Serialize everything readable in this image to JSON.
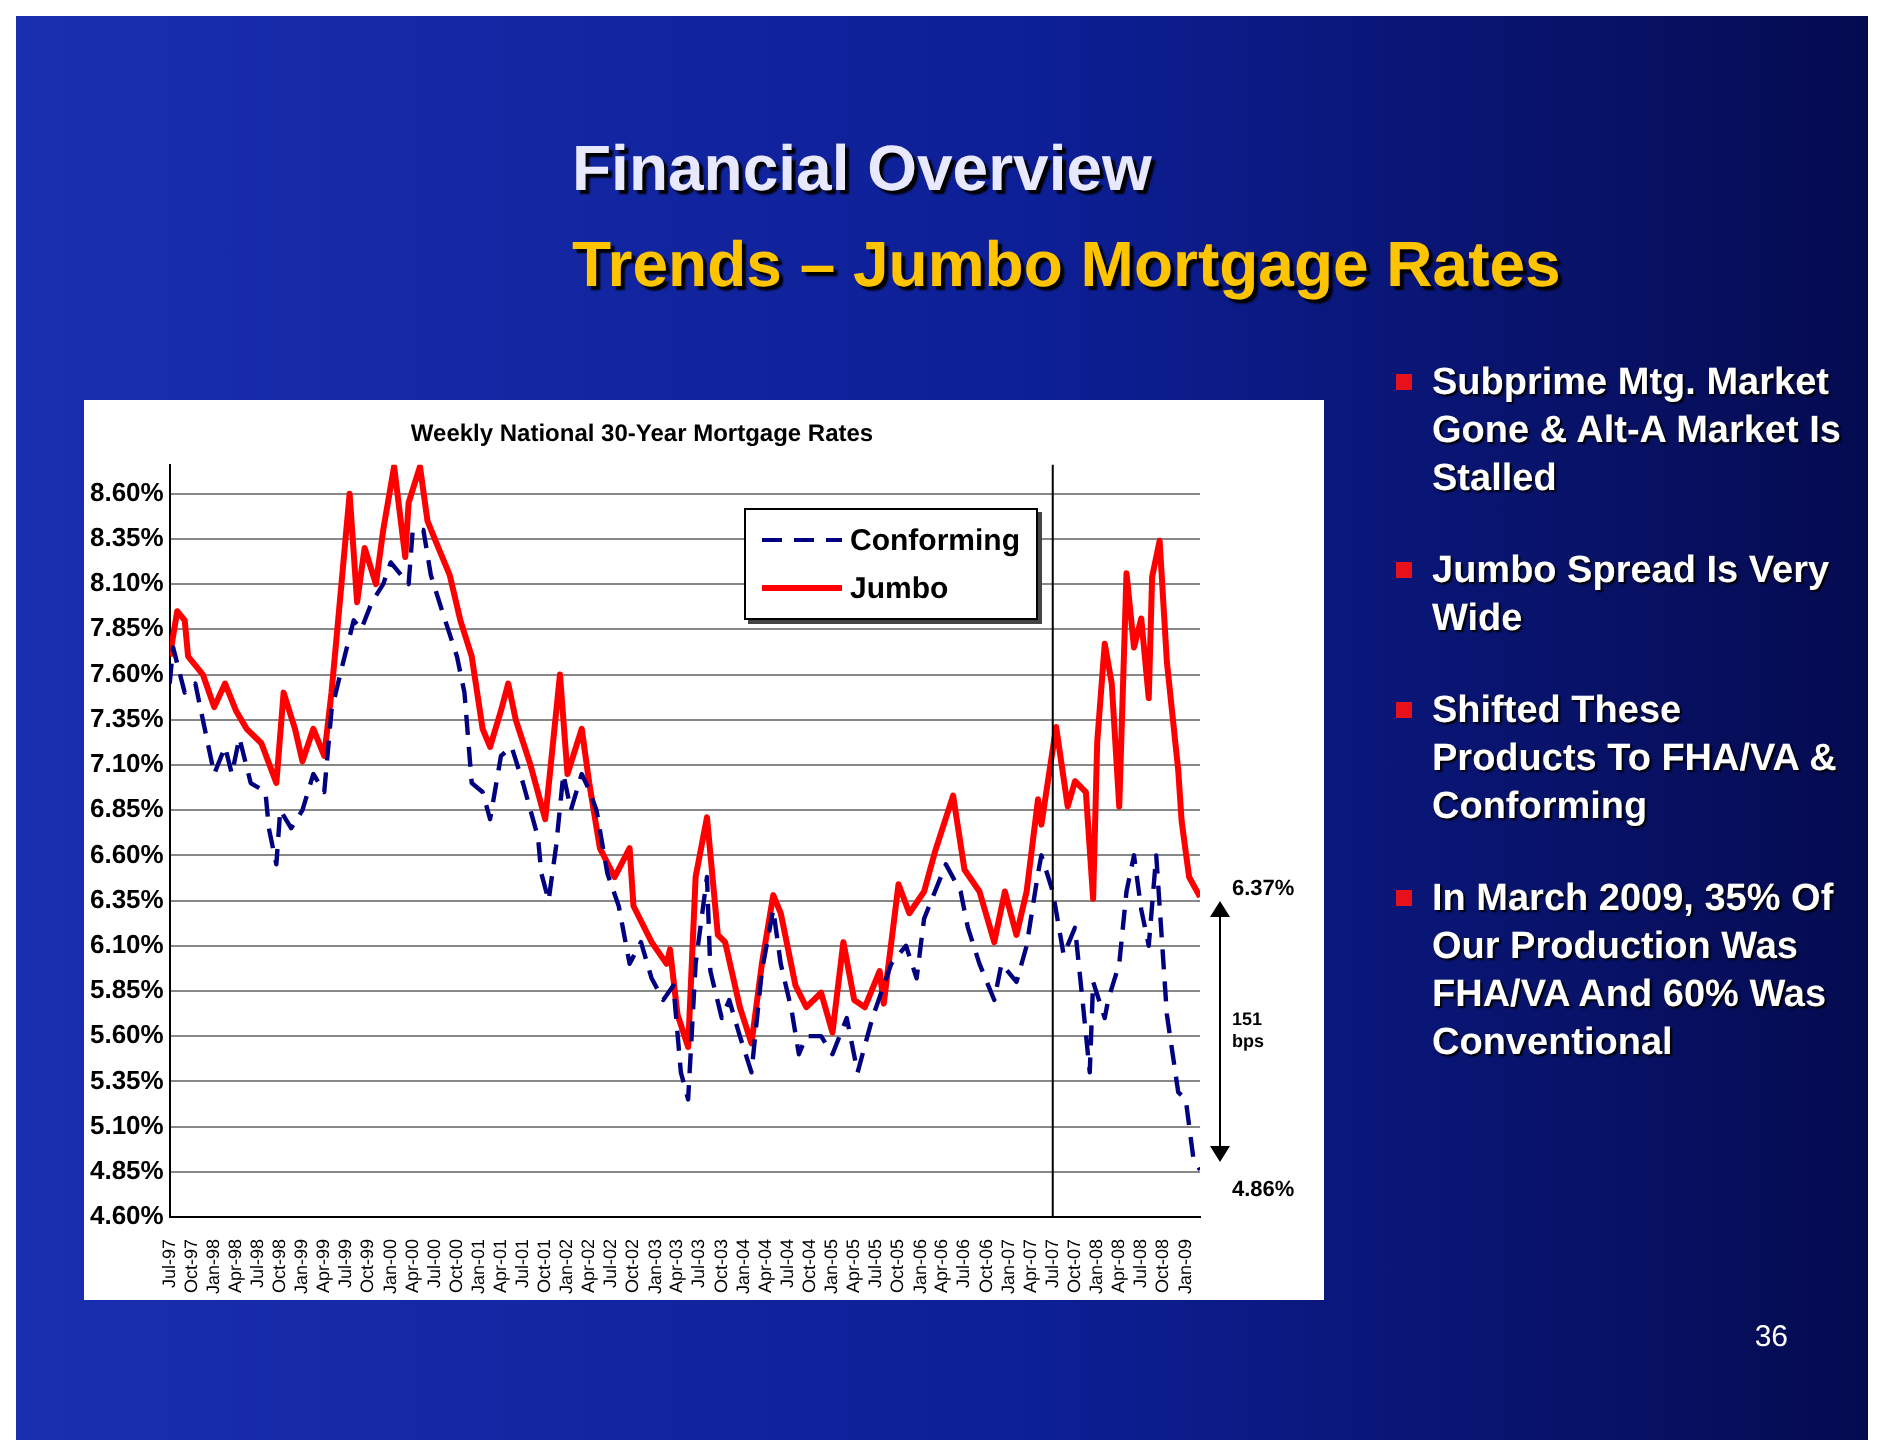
{
  "chart_data": {
    "type": "line",
    "title": "Weekly National 30-Year Mortgage Rates",
    "annotations": [
      "Financial Overview",
      "Trends – Jumbo Mortgage Rates",
      "Subprime Mtg. Market Gone & Alt-A Market Is Stalled",
      "Jumbo Spread Is Very Wide",
      "Shifted These Products To FHA/VA & Conforming",
      "In March 2009, 35% Of Our Production Was FHA/VA And 60% Was Conventional",
      "36",
      "151 bps",
      {
        "text": "6.37%",
        "x": "2009-03-01",
        "y": 6.37
      },
      {
        "text": "4.86%",
        "x": "2009-03-01",
        "y": 4.86
      }
    ],
    "series": [
      {
        "name": "Conforming",
        "color": "#000080",
        "line_style": "dashed",
        "x": [
          "1997-07-01",
          "1997-07-15",
          "1997-09-01",
          "1997-10-15",
          "1997-11-15",
          "1998-01-01",
          "1998-02-15",
          "1998-03-15",
          "1998-04-15",
          "1998-06-01",
          "1998-08-01",
          "1998-08-15",
          "1998-09-15",
          "1998-10-01",
          "1998-11-15",
          "1999-01-01",
          "1999-02-15",
          "1999-04-01",
          "1999-05-01",
          "1999-06-15",
          "1999-08-01",
          "1999-09-01",
          "1999-10-15",
          "1999-12-01",
          "2000-01-01",
          "2000-03-15",
          "2000-04-01",
          "2000-05-15",
          "2000-06-15",
          "2000-08-01",
          "2000-10-01",
          "2000-11-01",
          "2000-12-01",
          "2001-01-15",
          "2001-02-15",
          "2001-04-01",
          "2001-05-15",
          "2001-07-01",
          "2001-09-01",
          "2001-09-15",
          "2001-10-15",
          "2001-11-15",
          "2001-12-15",
          "2002-01-15",
          "2002-03-01",
          "2002-04-01",
          "2002-05-01",
          "2002-06-15",
          "2002-08-01",
          "2002-09-15",
          "2002-11-01",
          "2002-12-15",
          "2003-02-01",
          "2003-03-15",
          "2003-04-15",
          "2003-05-15",
          "2003-06-15",
          "2003-08-01",
          "2003-08-15",
          "2003-10-01",
          "2003-11-01",
          "2003-12-15",
          "2004-02-01",
          "2004-03-15",
          "2004-05-01",
          "2004-06-01",
          "2004-07-15",
          "2004-08-15",
          "2004-09-15",
          "2004-11-15",
          "2005-01-01",
          "2005-03-01",
          "2005-04-15",
          "2005-06-15",
          "2005-08-01",
          "2005-09-01",
          "2005-11-01",
          "2005-12-15",
          "2006-01-15",
          "2006-03-01",
          "2006-04-15",
          "2006-06-15",
          "2006-07-15",
          "2006-09-01",
          "2006-11-01",
          "2006-12-01",
          "2007-02-01",
          "2007-03-15",
          "2007-05-01",
          "2007-05-15",
          "2007-07-01",
          "2007-08-15",
          "2007-10-01",
          "2007-11-01",
          "2007-12-01",
          "2007-12-15",
          "2008-02-01",
          "2008-02-15",
          "2008-04-01",
          "2008-05-01",
          "2008-06-01",
          "2008-07-01",
          "2008-08-01",
          "2008-09-01",
          "2008-10-15",
          "2008-12-01",
          "2009-01-01",
          "2009-02-01",
          "2009-03-01"
        ],
        "values": [
          7.55,
          7.75,
          7.5,
          7.55,
          7.35,
          7.05,
          7.2,
          7.05,
          7.25,
          7.0,
          6.95,
          6.75,
          6.55,
          6.85,
          6.75,
          6.85,
          7.05,
          6.95,
          7.4,
          7.65,
          7.9,
          7.85,
          8.0,
          8.1,
          8.22,
          8.1,
          8.4,
          8.4,
          8.15,
          7.95,
          7.7,
          7.5,
          7.0,
          6.95,
          6.8,
          7.15,
          7.2,
          7.0,
          6.7,
          6.5,
          6.35,
          6.65,
          7.05,
          6.85,
          7.05,
          6.96,
          6.85,
          6.5,
          6.32,
          6.0,
          6.12,
          5.92,
          5.8,
          5.88,
          5.4,
          5.25,
          6.0,
          6.48,
          5.96,
          5.7,
          5.8,
          5.6,
          5.4,
          5.96,
          6.3,
          6.0,
          5.75,
          5.5,
          5.6,
          5.6,
          5.5,
          5.7,
          5.4,
          5.7,
          5.88,
          6.0,
          6.1,
          5.92,
          6.25,
          6.4,
          6.55,
          6.4,
          6.2,
          6.0,
          5.8,
          6.0,
          5.9,
          6.1,
          6.5,
          6.6,
          6.4,
          6.05,
          6.2,
          5.8,
          5.4,
          5.9,
          5.7,
          5.8,
          6.0,
          6.4,
          6.6,
          6.3,
          6.1,
          6.6,
          5.72,
          5.29,
          5.25,
          4.93,
          4.86
        ]
      },
      {
        "name": "Jumbo",
        "color": "#ff0000",
        "line_style": "solid",
        "x": [
          "1997-07-01",
          "1997-08-01",
          "1997-09-01",
          "1997-09-15",
          "1997-11-15",
          "1998-01-01",
          "1998-02-15",
          "1998-04-01",
          "1998-05-15",
          "1998-07-15",
          "1998-09-15",
          "1998-10-15",
          "1998-12-01",
          "1999-01-01",
          "1999-02-15",
          "1999-04-01",
          "1999-05-01",
          "1999-06-01",
          "1999-07-15",
          "1999-08-15",
          "1999-09-15",
          "1999-11-01",
          "1999-12-01",
          "2000-01-15",
          "2000-03-01",
          "2000-03-15",
          "2000-05-01",
          "2000-06-01",
          "2000-07-01",
          "2000-09-01",
          "2000-10-15",
          "2000-12-01",
          "2001-01-15",
          "2001-02-15",
          "2001-04-01",
          "2001-05-01",
          "2001-06-01",
          "2001-08-01",
          "2001-10-01",
          "2001-12-01",
          "2002-01-01",
          "2002-03-01",
          "2002-04-01",
          "2002-05-15",
          "2002-07-15",
          "2002-09-15",
          "2002-10-01",
          "2002-12-15",
          "2003-02-15",
          "2003-03-01",
          "2003-04-01",
          "2003-05-15",
          "2003-06-15",
          "2003-08-01",
          "2003-09-15",
          "2003-10-15",
          "2003-12-15",
          "2004-02-01",
          "2004-03-15",
          "2004-05-01",
          "2004-06-01",
          "2004-08-01",
          "2004-09-15",
          "2004-11-15",
          "2005-01-01",
          "2005-02-15",
          "2005-04-01",
          "2005-05-15",
          "2005-07-15",
          "2005-08-01",
          "2005-10-01",
          "2005-11-15",
          "2006-01-15",
          "2006-03-01",
          "2006-05-15",
          "2006-07-01",
          "2006-09-01",
          "2006-11-01",
          "2006-12-15",
          "2007-02-01",
          "2007-03-15",
          "2007-05-01",
          "2007-05-15",
          "2007-07-15",
          "2007-09-01",
          "2007-10-01",
          "2007-11-15",
          "2007-12-15",
          "2008-01-01",
          "2008-02-01",
          "2008-03-01",
          "2008-04-01",
          "2008-05-01",
          "2008-06-01",
          "2008-07-01",
          "2008-08-01",
          "2008-08-15",
          "2008-09-15",
          "2008-10-15",
          "2008-12-01",
          "2008-12-15",
          "2009-01-15",
          "2009-03-01"
        ],
        "values": [
          7.7,
          7.95,
          7.9,
          7.7,
          7.6,
          7.42,
          7.55,
          7.4,
          7.3,
          7.22,
          7.0,
          7.5,
          7.3,
          7.12,
          7.3,
          7.15,
          7.5,
          7.95,
          8.6,
          8.0,
          8.3,
          8.1,
          8.4,
          8.75,
          8.25,
          8.55,
          8.75,
          8.45,
          8.35,
          8.15,
          7.9,
          7.7,
          7.3,
          7.2,
          7.4,
          7.55,
          7.35,
          7.1,
          6.8,
          7.6,
          7.05,
          7.3,
          7.0,
          6.64,
          6.48,
          6.64,
          6.32,
          6.12,
          6.0,
          6.08,
          5.72,
          5.54,
          6.48,
          6.81,
          6.16,
          6.12,
          5.76,
          5.56,
          6.0,
          6.38,
          6.28,
          5.88,
          5.76,
          5.84,
          5.62,
          6.12,
          5.8,
          5.76,
          5.96,
          5.78,
          6.44,
          6.28,
          6.4,
          6.62,
          6.93,
          6.52,
          6.4,
          6.12,
          6.4,
          6.16,
          6.4,
          6.91,
          6.77,
          7.31,
          6.87,
          7.01,
          6.95,
          6.36,
          7.23,
          7.77,
          7.55,
          6.87,
          8.16,
          7.75,
          7.91,
          7.47,
          8.14,
          8.34,
          7.67,
          7.07,
          6.79,
          6.48,
          6.37
        ]
      }
    ],
    "xlim": [
      "1997-07-01",
      "2009-03-01"
    ],
    "xticks": [
      {
        "value": "1997-07",
        "label": "Jul-97"
      },
      {
        "value": "1997-10",
        "label": "Oct-97"
      },
      {
        "value": "1998-01",
        "label": "Jan-98"
      },
      {
        "value": "1998-04",
        "label": "Apr-98"
      },
      {
        "value": "1998-07",
        "label": "Jul-98"
      },
      {
        "value": "1998-10",
        "label": "Oct-98"
      },
      {
        "value": "1999-01",
        "label": "Jan-99"
      },
      {
        "value": "1999-04",
        "label": "Apr-99"
      },
      {
        "value": "1999-07",
        "label": "Jul-99"
      },
      {
        "value": "1999-10",
        "label": "Oct-99"
      },
      {
        "value": "2000-01",
        "label": "Jan-00"
      },
      {
        "value": "2000-04",
        "label": "Apr-00"
      },
      {
        "value": "2000-07",
        "label": "Jul-00"
      },
      {
        "value": "2000-10",
        "label": "Oct-00"
      },
      {
        "value": "2001-01",
        "label": "Jan-01"
      },
      {
        "value": "2001-04",
        "label": "Apr-01"
      },
      {
        "value": "2001-07",
        "label": "Jul-01"
      },
      {
        "value": "2001-10",
        "label": "Oct-01"
      },
      {
        "value": "2002-01",
        "label": "Jan-02"
      },
      {
        "value": "2002-04",
        "label": "Apr-02"
      },
      {
        "value": "2002-07",
        "label": "Jul-02"
      },
      {
        "value": "2002-10",
        "label": "Oct-02"
      },
      {
        "value": "2003-01",
        "label": "Jan-03"
      },
      {
        "value": "2003-04",
        "label": "Apr-03"
      },
      {
        "value": "2003-07",
        "label": "Jul-03"
      },
      {
        "value": "2003-10",
        "label": "Oct-03"
      },
      {
        "value": "2004-01",
        "label": "Jan-04"
      },
      {
        "value": "2004-04",
        "label": "Apr-04"
      },
      {
        "value": "2004-07",
        "label": "Jul-04"
      },
      {
        "value": "2004-10",
        "label": "Oct-04"
      },
      {
        "value": "2005-01",
        "label": "Jan-05"
      },
      {
        "value": "2005-04",
        "label": "Apr-05"
      },
      {
        "value": "2005-07",
        "label": "Jul-05"
      },
      {
        "value": "2005-10",
        "label": "Oct-05"
      },
      {
        "value": "2006-01",
        "label": "Jan-06"
      },
      {
        "value": "2006-04",
        "label": "Apr-06"
      },
      {
        "value": "2006-07",
        "label": "Jul-06"
      },
      {
        "value": "2006-10",
        "label": "Oct-06"
      },
      {
        "value": "2007-01",
        "label": "Jan-07"
      },
      {
        "value": "2007-04",
        "label": "Apr-07"
      },
      {
        "value": "2007-07",
        "label": "Jul-07"
      },
      {
        "value": "2007-10",
        "label": "Oct-07"
      },
      {
        "value": "2008-01",
        "label": "Jan-08"
      },
      {
        "value": "2008-04",
        "label": "Apr-08"
      },
      {
        "value": "2008-07",
        "label": "Jul-08"
      },
      {
        "value": "2008-10",
        "label": "Oct-08"
      },
      {
        "value": "2009-01",
        "label": "Jan-09"
      }
    ],
    "ylim": [
      4.6,
      8.76
    ],
    "yticks": [
      {
        "value": 4.6,
        "label": "4.60%"
      },
      {
        "value": 4.85,
        "label": "4.85%"
      },
      {
        "value": 5.1,
        "label": "5.10%"
      },
      {
        "value": 5.35,
        "label": "5.35%"
      },
      {
        "value": 5.6,
        "label": "5.60%"
      },
      {
        "value": 5.85,
        "label": "5.85%"
      },
      {
        "value": 6.1,
        "label": "6.10%"
      },
      {
        "value": 6.35,
        "label": "6.35%"
      },
      {
        "value": 6.6,
        "label": "6.60%"
      },
      {
        "value": 6.85,
        "label": "6.85%"
      },
      {
        "value": 7.1,
        "label": "7.10%"
      },
      {
        "value": 7.35,
        "label": "7.35%"
      },
      {
        "value": 7.6,
        "label": "7.60%"
      },
      {
        "value": 7.85,
        "label": "7.85%"
      },
      {
        "value": 8.1,
        "label": "8.10%"
      },
      {
        "value": 8.35,
        "label": "8.35%"
      },
      {
        "value": 8.6,
        "label": "8.60%"
      }
    ],
    "grid": "y",
    "legend": "top",
    "marker": "none",
    "ref_lines": [
      {
        "axis": "x",
        "value": "2007-07-01",
        "color": "#000000"
      }
    ]
  }
}
